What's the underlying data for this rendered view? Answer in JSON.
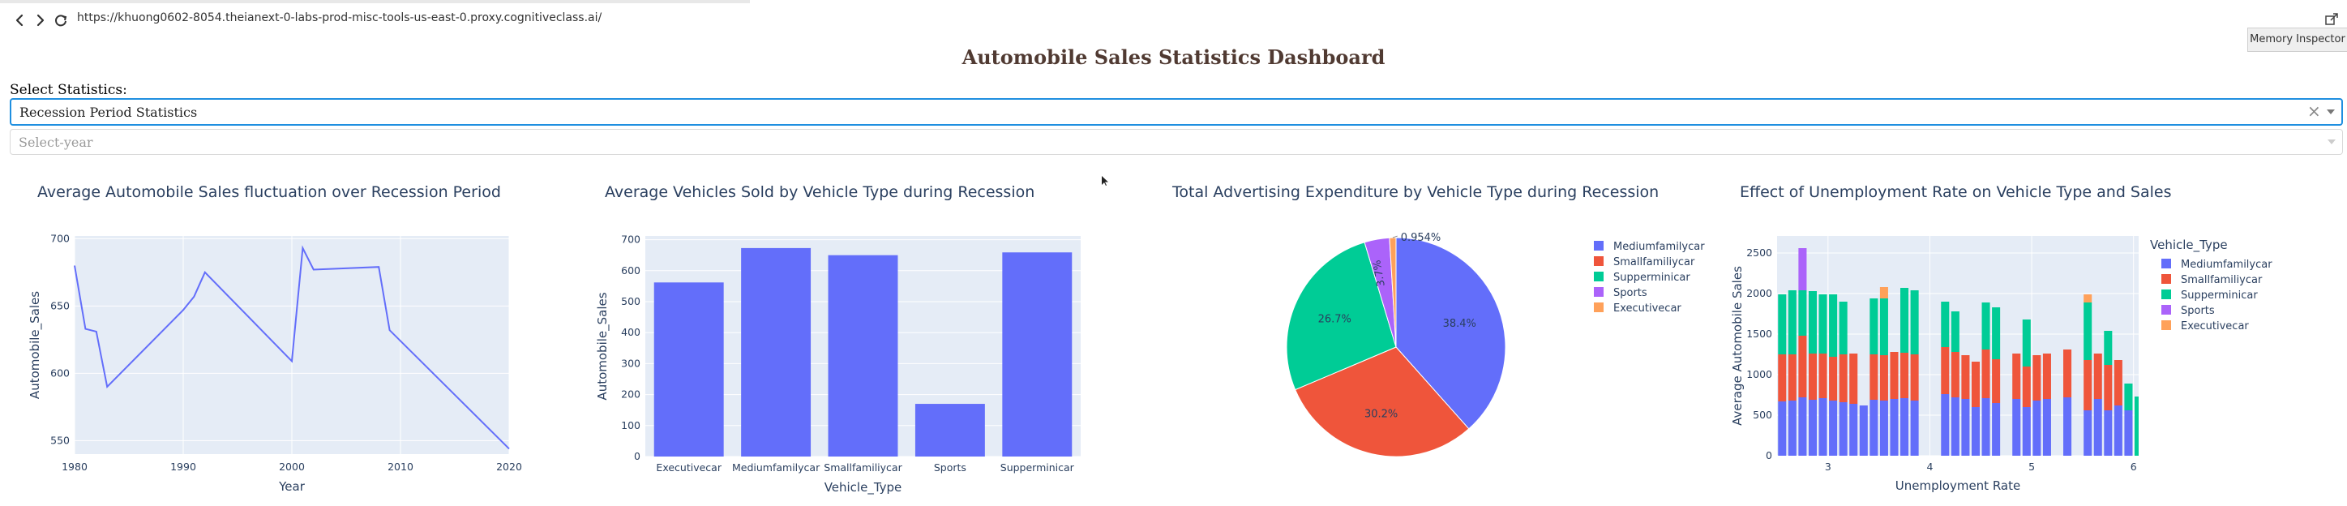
{
  "browser": {
    "url": "https://khuong0602-8054.theianext-0-labs-prod-misc-tools-us-east-0.proxy.cognitiveclass.ai/",
    "memory_inspector_label": "Memory Inspector"
  },
  "page": {
    "title": "Automobile Sales Statistics Dashboard",
    "select_label": "Select Statistics:",
    "statistics_dropdown": {
      "value": "Recession Period Statistics",
      "clear_glyph": "×"
    },
    "year_dropdown": {
      "placeholder": "Select-year"
    }
  },
  "colors": {
    "series": [
      "#636efa",
      "#EF553B",
      "#00cc96",
      "#ab63fa",
      "#FFA15A"
    ],
    "plot_bg": "#E5ECF6",
    "title_text": "#503a32",
    "dropdown_focus": "#1f8fe0"
  },
  "chart_data": [
    {
      "type": "line",
      "title": "Average Automobile Sales fluctuation over Recession Period",
      "xlabel": "Year",
      "ylabel": "Automobile_Sales",
      "xlim": [
        1980,
        2020
      ],
      "ylim": [
        540,
        702
      ],
      "xticks": [
        1980,
        1990,
        2000,
        2010,
        2020
      ],
      "yticks": [
        550,
        600,
        650,
        700
      ],
      "x": [
        1980,
        1981,
        1982,
        1983,
        1990,
        1991,
        1992,
        2000,
        2001,
        2002,
        2008,
        2009,
        2020
      ],
      "y": [
        680,
        633,
        631,
        590,
        647,
        657,
        675,
        609,
        693,
        677,
        679,
        632,
        544
      ],
      "grid": true
    },
    {
      "type": "bar",
      "title": "Average Vehicles Sold by Vehicle Type during Recession",
      "xlabel": "Vehicle_Type",
      "ylabel": "Automobile_Sales",
      "ylim": [
        0,
        712
      ],
      "yticks": [
        0,
        100,
        200,
        300,
        400,
        500,
        600,
        700
      ],
      "categories": [
        "Executivecar",
        "Mediumfamilycar",
        "Smallfamiliycar",
        "Sports",
        "Supperminicar"
      ],
      "values": [
        562,
        673,
        650,
        170,
        659
      ],
      "grid": true
    },
    {
      "type": "pie",
      "title": "Total Advertising Expenditure by Vehicle Type during Recession",
      "labels": [
        "Mediumfamilycar",
        "Smallfamiliycar",
        "Supperminicar",
        "Sports",
        "Executivecar"
      ],
      "values": [
        38.4,
        30.2,
        26.7,
        3.7,
        0.954
      ],
      "value_labels": [
        "38.4%",
        "30.2%",
        "26.7%",
        "3.7%",
        "0.954%"
      ],
      "legend": "right"
    },
    {
      "type": "bar",
      "stacked": true,
      "title": "Effect of Unemployment Rate on Vehicle Type and Sales",
      "xlabel": "Unemployment Rate",
      "ylabel": "Average Automobile Sales",
      "legend_title": "Vehicle_Type",
      "legend": "right",
      "xlim": [
        2.5,
        6.05
      ],
      "ylim": [
        0,
        2710
      ],
      "xticks": [
        3,
        4,
        5,
        6
      ],
      "yticks": [
        0,
        500,
        1000,
        1500,
        2000,
        2500
      ],
      "bar_width": 0.08,
      "x": [
        2.55,
        2.65,
        2.75,
        2.85,
        2.95,
        3.05,
        3.15,
        3.25,
        3.35,
        3.45,
        3.55,
        3.65,
        3.75,
        3.85,
        3.95,
        4.15,
        4.25,
        4.35,
        4.45,
        4.55,
        4.65,
        4.85,
        4.95,
        5.05,
        5.15,
        5.35,
        5.45,
        5.55,
        5.65,
        5.75,
        5.85,
        5.95,
        6.05
      ],
      "series": [
        {
          "name": "Mediumfamilycar",
          "values": [
            670,
            680,
            720,
            690,
            710,
            680,
            660,
            640,
            620,
            690,
            680,
            700,
            710,
            680,
            0,
            760,
            720,
            700,
            600,
            710,
            650,
            700,
            600,
            680,
            700,
            720,
            0,
            560,
            700,
            560,
            620,
            560,
            0
          ]
        },
        {
          "name": "Smallfamiliycar",
          "values": [
            580,
            570,
            760,
            570,
            550,
            540,
            590,
            620,
            0,
            560,
            560,
            580,
            560,
            570,
            0,
            580,
            560,
            540,
            560,
            600,
            540,
            560,
            500,
            560,
            560,
            590,
            0,
            620,
            560,
            560,
            560,
            0,
            0
          ]
        },
        {
          "name": "Supperminicar",
          "values": [
            740,
            790,
            560,
            770,
            730,
            770,
            650,
            0,
            0,
            690,
            700,
            0,
            800,
            790,
            0,
            560,
            500,
            0,
            0,
            580,
            640,
            0,
            580,
            0,
            0,
            0,
            0,
            710,
            0,
            420,
            0,
            330,
            730
          ]
        },
        {
          "name": "Sports",
          "values": [
            0,
            0,
            520,
            0,
            0,
            0,
            0,
            0,
            0,
            0,
            0,
            0,
            0,
            0,
            0,
            0,
            0,
            0,
            0,
            0,
            0,
            0,
            0,
            0,
            0,
            0,
            0,
            0,
            0,
            0,
            0,
            0,
            0
          ]
        },
        {
          "name": "Executivecar",
          "values": [
            0,
            0,
            0,
            0,
            0,
            0,
            0,
            0,
            0,
            0,
            140,
            0,
            0,
            0,
            0,
            0,
            0,
            0,
            0,
            0,
            0,
            0,
            0,
            0,
            0,
            0,
            0,
            100,
            0,
            0,
            0,
            0,
            0
          ]
        }
      ]
    }
  ]
}
